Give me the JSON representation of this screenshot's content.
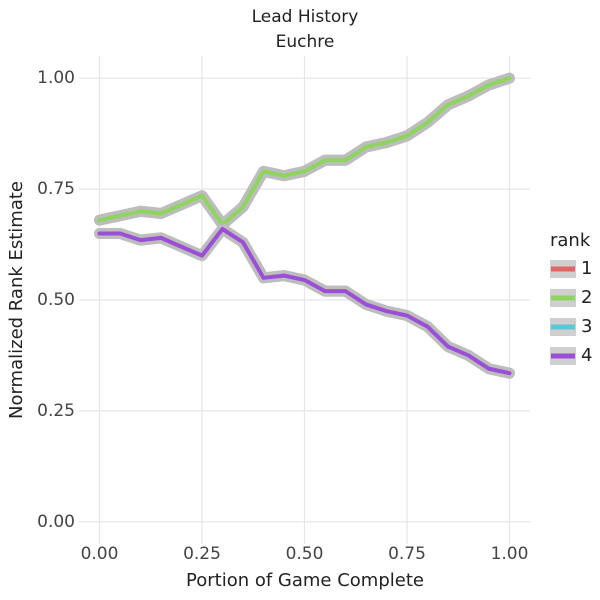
{
  "chart_data": {
    "type": "line",
    "title": "Lead History",
    "subtitle": "Euchre",
    "x_label": "Portion of Game Complete",
    "y_label": "Normalized Rank Estimate",
    "legend_title": "rank",
    "legend_position": "right",
    "grid": true,
    "xlim": [
      -0.05,
      1.05
    ],
    "ylim": [
      -0.05,
      1.05
    ],
    "xticks": [
      {
        "value": 0,
        "label": "0.00"
      },
      {
        "value": 0.25,
        "label": "0.25"
      },
      {
        "value": 0.5,
        "label": "0.50"
      },
      {
        "value": 0.75,
        "label": "0.75"
      },
      {
        "value": 1,
        "label": "1.00"
      }
    ],
    "yticks": [
      {
        "value": 0,
        "label": "0.00"
      },
      {
        "value": 0.25,
        "label": "0.25"
      },
      {
        "value": 0.5,
        "label": "0.50"
      },
      {
        "value": 0.75,
        "label": "0.75"
      },
      {
        "value": 1,
        "label": "1.00"
      }
    ],
    "x": [
      0,
      0.05,
      0.1,
      0.15,
      0.2,
      0.25,
      0.3,
      0.35,
      0.4,
      0.45,
      0.5,
      0.55,
      0.6,
      0.65,
      0.7,
      0.75,
      0.8,
      0.85,
      0.9,
      0.95,
      1
    ],
    "series": [
      {
        "name": "1",
        "color": "#e06666",
        "values": [
          0.68,
          0.69,
          0.7,
          0.695,
          0.715,
          0.735,
          0.67,
          0.71,
          0.79,
          0.78,
          0.79,
          0.815,
          0.815,
          0.845,
          0.855,
          0.87,
          0.9,
          0.94,
          0.96,
          0.985,
          1.0
        ]
      },
      {
        "name": "2",
        "color": "#8fd460",
        "values": [
          0.68,
          0.69,
          0.7,
          0.695,
          0.715,
          0.735,
          0.67,
          0.71,
          0.79,
          0.78,
          0.79,
          0.815,
          0.815,
          0.845,
          0.855,
          0.87,
          0.9,
          0.94,
          0.96,
          0.985,
          1.0
        ]
      },
      {
        "name": "3",
        "color": "#5bc8d6",
        "values": [
          0.65,
          0.65,
          0.635,
          0.64,
          0.62,
          0.6,
          0.66,
          0.63,
          0.55,
          0.555,
          0.545,
          0.52,
          0.52,
          0.49,
          0.475,
          0.465,
          0.44,
          0.395,
          0.375,
          0.345,
          0.335
        ]
      },
      {
        "name": "4",
        "color": "#9a4fd6",
        "values": [
          0.65,
          0.65,
          0.635,
          0.64,
          0.62,
          0.6,
          0.66,
          0.63,
          0.55,
          0.555,
          0.545,
          0.52,
          0.52,
          0.49,
          0.475,
          0.465,
          0.44,
          0.395,
          0.375,
          0.345,
          0.335
        ]
      }
    ]
  }
}
